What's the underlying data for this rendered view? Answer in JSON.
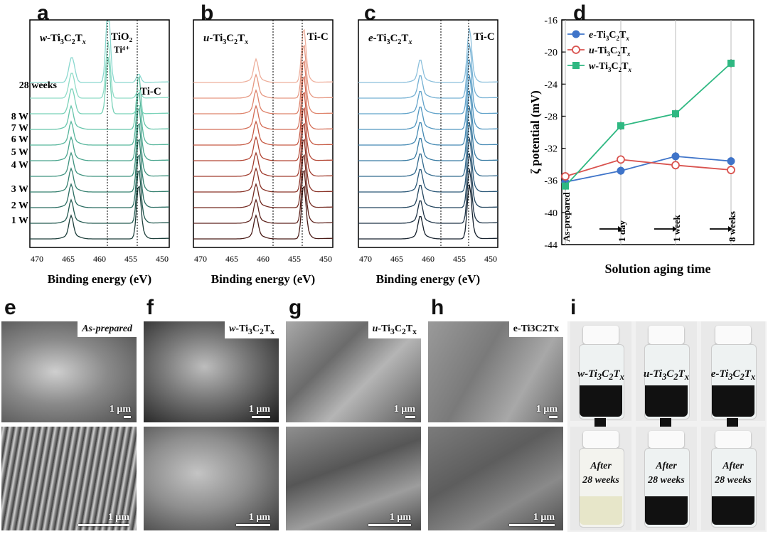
{
  "panel_labels": {
    "a": "a",
    "b": "b",
    "c": "c",
    "d": "d",
    "e": "e",
    "f": "f",
    "g": "g",
    "h": "h",
    "i": "i"
  },
  "xps": {
    "xlabel": "Binding energy (eV)",
    "ticks": [
      "470",
      "465",
      "460",
      "455",
      "450"
    ],
    "samples": [
      "w-Ti3C2Tx",
      "u-Ti3C2Tx",
      "e-Ti3C2Tx"
    ],
    "a_labels": {
      "tio2": "TiO₂",
      "ti4": "Ti⁴⁺",
      "tic": "Ti-C",
      "w28": "28 weeks",
      "w8": "8 W",
      "w7": "7 W",
      "w6": "6 W",
      "w5": "5 W",
      "w4": "4 W",
      "w3": "3 W",
      "w2": "2 W",
      "w1": "1 W"
    },
    "b_tic": "Ti-C",
    "c_tic": "Ti-C"
  },
  "chart_data": {
    "type": "line",
    "x": [
      "As-prepared",
      "1 day",
      "1 week",
      "8 weeks"
    ],
    "xlabel": "Solution aging time",
    "ylabel": "ζ potential (mV)",
    "ylim": [
      -44,
      -16
    ],
    "yticks": [
      -16,
      -20,
      -24,
      -28,
      -32,
      -36,
      -40,
      -44
    ],
    "legend_position": "top-left",
    "series": [
      {
        "name": "e-Ti3C2Tx",
        "values": [
          -36.2,
          -34.8,
          -33.0,
          -33.6
        ],
        "color": "#3f74c9",
        "marker": "filled-circle"
      },
      {
        "name": "u-Ti3C2Tx",
        "values": [
          -35.5,
          -33.4,
          -34.1,
          -34.7
        ],
        "color": "#d9534f",
        "marker": "open-circle"
      },
      {
        "name": "w-Ti3C2Tx",
        "values": [
          -36.7,
          -29.2,
          -27.7,
          -21.4
        ],
        "color": "#2fb882",
        "marker": "square"
      }
    ]
  },
  "sem": {
    "e_tag": "As-prepared",
    "f_tag": "w-Ti3C2Tx",
    "g_tag": "u-Ti3C2Tx",
    "h_tag": "e-Ti3C2Tx",
    "scale": "1 μm"
  },
  "vials": {
    "top": [
      "w-Ti3C2Tx",
      "u-Ti3C2Tx",
      "e-Ti3C2Tx"
    ],
    "after": "After",
    "weeks": "28 weeks"
  }
}
